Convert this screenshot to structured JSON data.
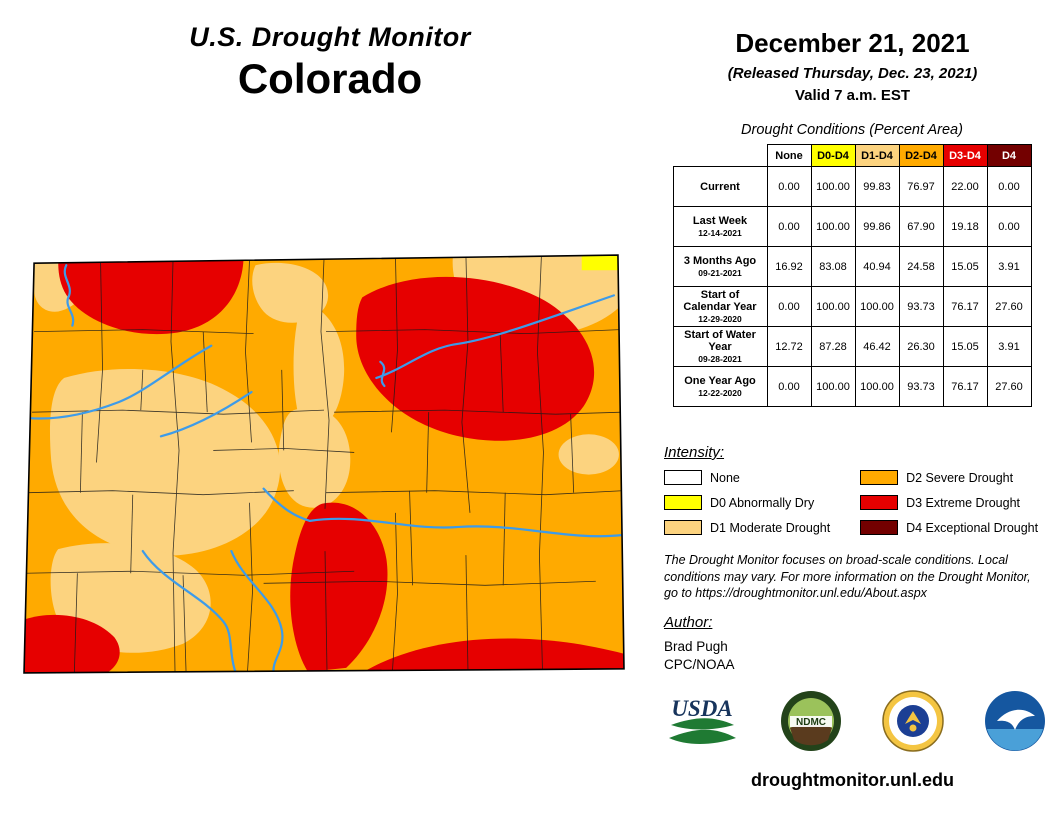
{
  "header": {
    "title": "U.S. Drought Monitor",
    "state": "Colorado"
  },
  "date_block": {
    "date": "December 21, 2021",
    "released": "(Released Thursday, Dec. 23, 2021)",
    "valid": "Valid 7 a.m. EST"
  },
  "palette": {
    "none": "#FFFFFF",
    "D0": "#FFFF00",
    "D1": "#FCD37F",
    "D2": "#FFAA00",
    "D3": "#E60000",
    "D4": "#730000"
  },
  "map": {
    "river_color": "#3D9BE9",
    "border_color": "#000000",
    "county_line_color": "#1a1a1a"
  },
  "table": {
    "caption": "Drought Conditions (Percent Area)",
    "columns": [
      {
        "label": "None",
        "key": "none",
        "light_text": false
      },
      {
        "label": "D0-D4",
        "key": "D0",
        "light_text": false
      },
      {
        "label": "D1-D4",
        "key": "D1",
        "light_text": false
      },
      {
        "label": "D2-D4",
        "key": "D2",
        "light_text": false
      },
      {
        "label": "D3-D4",
        "key": "D3",
        "light_text": true
      },
      {
        "label": "D4",
        "key": "D4",
        "light_text": true
      }
    ],
    "rows": [
      {
        "label": "Current",
        "sub": "",
        "values": [
          "0.00",
          "100.00",
          "99.83",
          "76.97",
          "22.00",
          "0.00"
        ]
      },
      {
        "label": "Last Week",
        "sub": "12-14-2021",
        "values": [
          "0.00",
          "100.00",
          "99.86",
          "67.90",
          "19.18",
          "0.00"
        ]
      },
      {
        "label": "3 Months Ago",
        "sub": "09-21-2021",
        "values": [
          "16.92",
          "83.08",
          "40.94",
          "24.58",
          "15.05",
          "3.91"
        ]
      },
      {
        "label": "Start of Calendar Year",
        "sub": "12-29-2020",
        "values": [
          "0.00",
          "100.00",
          "100.00",
          "93.73",
          "76.17",
          "27.60"
        ]
      },
      {
        "label": "Start of Water Year",
        "sub": "09-28-2021",
        "values": [
          "12.72",
          "87.28",
          "46.42",
          "26.30",
          "15.05",
          "3.91"
        ]
      },
      {
        "label": "One Year Ago",
        "sub": "12-22-2020",
        "values": [
          "0.00",
          "100.00",
          "100.00",
          "93.73",
          "76.17",
          "27.60"
        ]
      }
    ]
  },
  "legend": {
    "title": "Intensity:",
    "items": [
      {
        "key": "none",
        "label": "None"
      },
      {
        "key": "D0",
        "label": "D0 Abnormally Dry"
      },
      {
        "key": "D1",
        "label": "D1 Moderate Drought"
      },
      {
        "key": "D2",
        "label": "D2 Severe Drought"
      },
      {
        "key": "D3",
        "label": "D3 Extreme Drought"
      },
      {
        "key": "D4",
        "label": "D4 Exceptional Drought"
      }
    ]
  },
  "disclaimer": "The Drought Monitor focuses on broad-scale conditions. Local conditions may vary. For more information on the Drought Monitor, go to https://droughtmonitor.unl.edu/About.aspx",
  "author": {
    "heading": "Author:",
    "name": "Brad Pugh",
    "org": "CPC/NOAA"
  },
  "footer": {
    "url": "droughtmonitor.unl.edu"
  },
  "logos": {
    "usda": "USDA",
    "ndmc": "NDMC"
  }
}
